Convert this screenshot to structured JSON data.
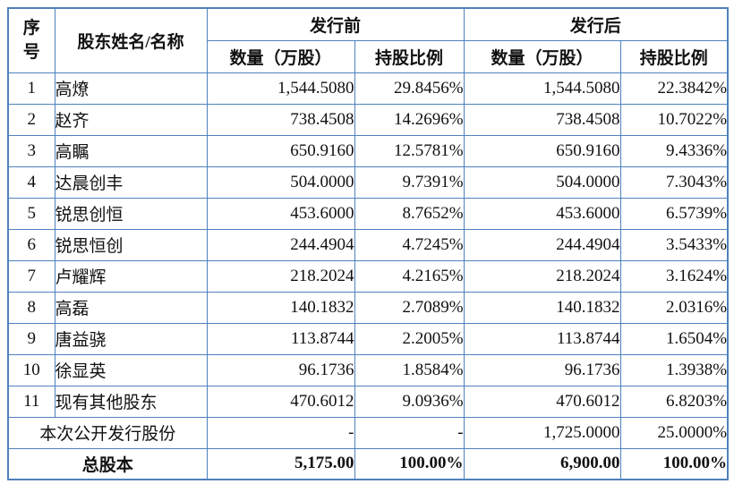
{
  "table": {
    "border_color": "#4f81bd",
    "header": {
      "col_no": "序号",
      "col_name": "股东姓名/名称",
      "group_pre": "发行前",
      "group_post": "发行后",
      "sub_qty_pre": "数量（万股）",
      "sub_pct_pre": "持股比例",
      "sub_qty_post": "数量（万股）",
      "sub_pct_post": "持股比例"
    },
    "rows": [
      {
        "no": "1",
        "name": "高燎",
        "pre_qty": "1,544.5080",
        "pre_pct": "29.8456%",
        "post_qty": "1,544.5080",
        "post_pct": "22.3842%"
      },
      {
        "no": "2",
        "name": "赵齐",
        "pre_qty": "738.4508",
        "pre_pct": "14.2696%",
        "post_qty": "738.4508",
        "post_pct": "10.7022%"
      },
      {
        "no": "3",
        "name": "高瞩",
        "pre_qty": "650.9160",
        "pre_pct": "12.5781%",
        "post_qty": "650.9160",
        "post_pct": "9.4336%"
      },
      {
        "no": "4",
        "name": "达晨创丰",
        "pre_qty": "504.0000",
        "pre_pct": "9.7391%",
        "post_qty": "504.0000",
        "post_pct": "7.3043%"
      },
      {
        "no": "5",
        "name": "锐思创恒",
        "pre_qty": "453.6000",
        "pre_pct": "8.7652%",
        "post_qty": "453.6000",
        "post_pct": "6.5739%"
      },
      {
        "no": "6",
        "name": "锐思恒创",
        "pre_qty": "244.4904",
        "pre_pct": "4.7245%",
        "post_qty": "244.4904",
        "post_pct": "3.5433%"
      },
      {
        "no": "7",
        "name": "卢耀辉",
        "pre_qty": "218.2024",
        "pre_pct": "4.2165%",
        "post_qty": "218.2024",
        "post_pct": "3.1624%"
      },
      {
        "no": "8",
        "name": "高磊",
        "pre_qty": "140.1832",
        "pre_pct": "2.7089%",
        "post_qty": "140.1832",
        "post_pct": "2.0316%"
      },
      {
        "no": "9",
        "name": "唐益骁",
        "pre_qty": "113.8744",
        "pre_pct": "2.2005%",
        "post_qty": "113.8744",
        "post_pct": "1.6504%"
      },
      {
        "no": "10",
        "name": "徐显英",
        "pre_qty": "96.1736",
        "pre_pct": "1.8584%",
        "post_qty": "96.1736",
        "post_pct": "1.3938%"
      },
      {
        "no": "11",
        "name": "现有其他股东",
        "pre_qty": "470.6012",
        "pre_pct": "9.0936%",
        "post_qty": "470.6012",
        "post_pct": "6.8203%"
      },
      {
        "no": null,
        "name": "本次公开发行股份",
        "merged": true,
        "pre_qty": "-",
        "pre_pct": "-",
        "post_qty": "1,725.0000",
        "post_pct": "25.0000%"
      },
      {
        "no": null,
        "name": "总股本",
        "merged": true,
        "bold": true,
        "pre_qty": "5,175.00",
        "pre_pct": "100.00%",
        "post_qty": "6,900.00",
        "post_pct": "100.00%"
      }
    ]
  }
}
